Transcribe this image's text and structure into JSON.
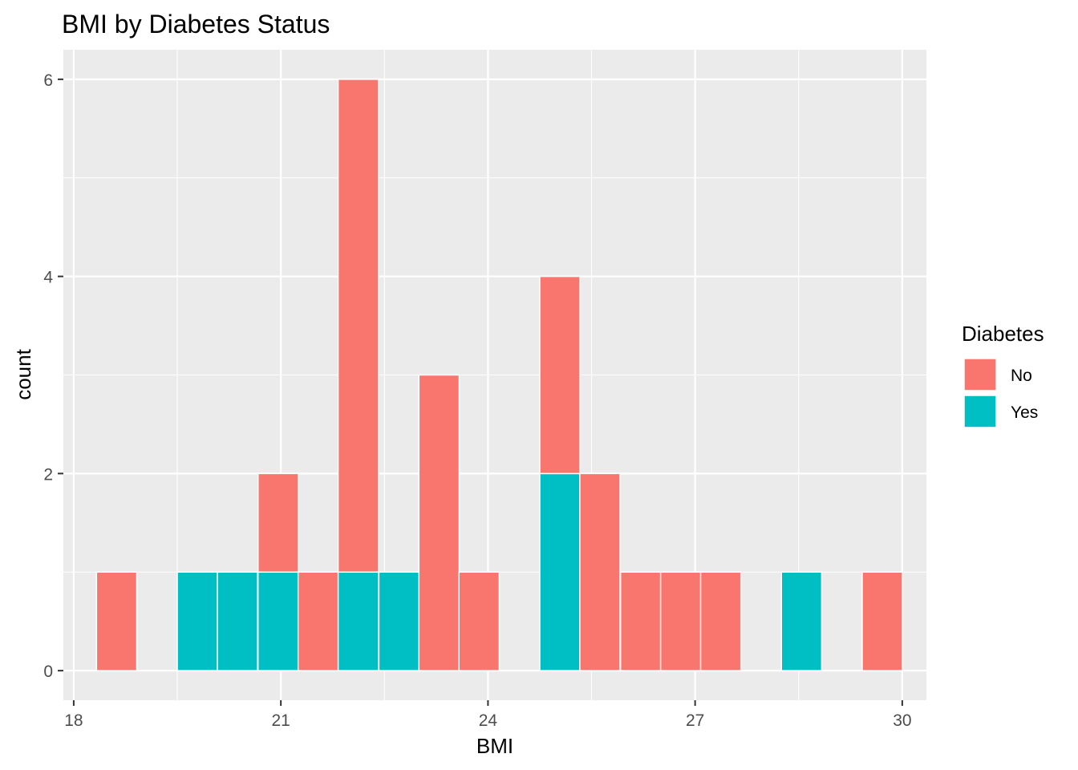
{
  "chart_data": {
    "type": "bar",
    "title": "BMI by Diabetes Status",
    "xlabel": "BMI",
    "ylabel": "count",
    "xlim": [
      17.85,
      30.35
    ],
    "ylim": [
      -0.3,
      6.3
    ],
    "xticks": [
      18,
      21,
      24,
      27,
      30
    ],
    "yticks": [
      0,
      2,
      4,
      6
    ],
    "grid": true,
    "legend": {
      "title": "Diabetes",
      "placement": "right"
    },
    "bin_width": 0.583,
    "bins": [
      {
        "x_start": 18.33,
        "no": 1,
        "yes": 0
      },
      {
        "x_start": 19.5,
        "no": 0,
        "yes": 1
      },
      {
        "x_start": 20.08,
        "no": 0,
        "yes": 1
      },
      {
        "x_start": 20.67,
        "no": 1,
        "yes": 1
      },
      {
        "x_start": 21.25,
        "no": 1,
        "yes": 0
      },
      {
        "x_start": 21.83,
        "no": 5,
        "yes": 1
      },
      {
        "x_start": 22.42,
        "no": 0,
        "yes": 1
      },
      {
        "x_start": 23.0,
        "no": 3,
        "yes": 0
      },
      {
        "x_start": 23.58,
        "no": 1,
        "yes": 0
      },
      {
        "x_start": 24.75,
        "no": 2,
        "yes": 2
      },
      {
        "x_start": 25.33,
        "no": 2,
        "yes": 0
      },
      {
        "x_start": 25.92,
        "no": 1,
        "yes": 0
      },
      {
        "x_start": 26.5,
        "no": 1,
        "yes": 0
      },
      {
        "x_start": 27.08,
        "no": 1,
        "yes": 0
      },
      {
        "x_start": 28.25,
        "no": 0,
        "yes": 1
      },
      {
        "x_start": 29.42,
        "no": 1,
        "yes": 0
      }
    ],
    "series": [
      {
        "name": "No",
        "key": "no",
        "color": "#F8766D"
      },
      {
        "name": "Yes",
        "key": "yes",
        "color": "#00BFC4"
      }
    ]
  }
}
